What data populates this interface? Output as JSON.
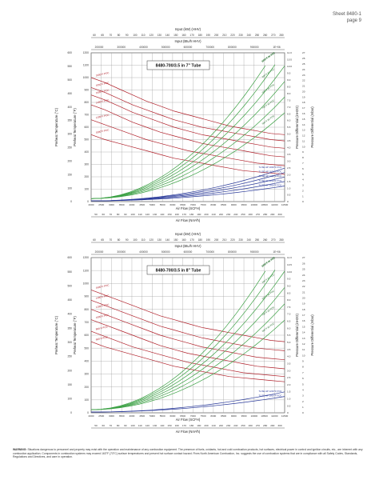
{
  "header": {
    "sheet": "Sheet 8480-1",
    "page": "page 9"
  },
  "chart_data": [
    {
      "type": "line",
      "title": "8480-700/3.5 in 7\" Tube",
      "top_axis_1_label": "Input (kW) (HHV)",
      "top_axis_1_ticks": [
        "60",
        "65",
        "70",
        "80",
        "90",
        "100",
        "110",
        "120",
        "130",
        "140",
        "150",
        "160",
        "170",
        "180",
        "190",
        "200",
        "210",
        "220",
        "230",
        "240",
        "250",
        "260",
        "270",
        "280"
      ],
      "top_axis_2_label": "Input (Btu/h HHV)",
      "top_axis_2_ticks": [
        "200000",
        "300000",
        "400000",
        "500000",
        "600000",
        "700000",
        "800000",
        "900000",
        "1E+06"
      ],
      "xlabel": "Air Flow (SCFH)",
      "x_ticks": [
        "2000",
        "2500",
        "3000",
        "3500",
        "4000",
        "4500",
        "5000",
        "5500",
        "6000",
        "6500",
        "7000",
        "7500",
        "8000",
        "8500",
        "9000",
        "9500",
        "10000",
        "10500",
        "11000",
        "11500"
      ],
      "bottom_axis_2_label": "Air Flow (Nm³/h)",
      "bottom_axis_2_ticks": [
        "50",
        "60",
        "70",
        "80",
        "90",
        "100",
        "110",
        "120",
        "130",
        "140",
        "150",
        "160",
        "170",
        "180",
        "190",
        "200",
        "210",
        "220",
        "230",
        "240",
        "250",
        "260",
        "270",
        "280",
        "290",
        "300"
      ],
      "ylabel_left_c": "Preheat Temperature (°C)",
      "y_ticks_c": [
        "0",
        "100",
        "150",
        "200",
        "250",
        "300",
        "350",
        "400",
        "450",
        "500",
        "550",
        "600"
      ],
      "ylabel_left_f": "Preheat Temperature (°F)",
      "y_ticks_f": [
        "0",
        "100",
        "200",
        "300",
        "400",
        "500",
        "600",
        "700",
        "800",
        "900",
        "1000",
        "1100",
        "1200"
      ],
      "ylabel_right_inwc": "Pressure Differential (inH2O)",
      "y_ticks_inwc": [
        "0",
        "0.5",
        "1.0",
        "1.5",
        "2.0",
        "2.5",
        "3.0",
        "3.5",
        "4.0",
        "4.5",
        "5.0",
        "5.5",
        "6.0",
        "6.5",
        "7.0",
        "7.5",
        "8.0",
        "8.5",
        "9.0",
        "9.5",
        "10.0",
        "10.5",
        "11.0"
      ],
      "ylabel_right_mbar": "Pressure Differential (mbar)",
      "y_ticks_mbar": [
        "0",
        "1",
        "2",
        "3",
        "4",
        "5",
        "6",
        "7",
        "8",
        "9",
        "10",
        "11",
        "12",
        "13",
        "14",
        "15",
        "16",
        "17",
        "18",
        "19",
        "20",
        "21",
        "22",
        "23",
        "24",
        "25",
        "26",
        "27"
      ],
      "red_series": [
        {
          "name": "1000°F POC",
          "values": [
            1000,
            960,
            910,
            860,
            810,
            770,
            730,
            700,
            670,
            640,
            610,
            590,
            570,
            550,
            540
          ]
        },
        {
          "name": "1050°F POC",
          "values": [
            920,
            880,
            830,
            780,
            740,
            700,
            660,
            630,
            600,
            580,
            560,
            540,
            520,
            500,
            490
          ]
        },
        {
          "name": "1600°F POC",
          "values": [
            860,
            820,
            770,
            720,
            680,
            640,
            600,
            570,
            540,
            520,
            500,
            480,
            460,
            440,
            430
          ]
        },
        {
          "name": "1400°F POC",
          "values": [
            780,
            740,
            690,
            640,
            600,
            560,
            530,
            500,
            470,
            450,
            430,
            410,
            390,
            370,
            360
          ]
        },
        {
          "name": "1200°F POC",
          "values": [
            660,
            620,
            580,
            540,
            500,
            470,
            440,
            410,
            390,
            370,
            350,
            330,
            310,
            300,
            290
          ]
        },
        {
          "name": "1000°F POC",
          "values": [
            540,
            500,
            470,
            440,
            410,
            380,
            350,
            330,
            310,
            290,
            270,
            250,
            240,
            230,
            220
          ]
        }
      ],
      "green_series_note": "Pressure differential curves (air)",
      "green_labels": [
        "600°F Air POC",
        "700°F Air POC",
        "800°F Air POC",
        "900°F Air POC",
        "1000°F Air POC",
        "1050°F Air POC"
      ],
      "blue_labels": [
        "TL/SE HP 1000°F POC",
        "TL/SE HP 1200°F POC",
        "TL/SE HP 1400°F POC",
        "TL/SE HP 1600°F POC",
        "TL/SE HP 1000°F POC"
      ]
    },
    {
      "type": "line",
      "title": "8480-700/3.5 in 8\" Tube",
      "top_axis_1_label": "Input (kW) (HHV)",
      "top_axis_1_ticks": [
        "60",
        "65",
        "70",
        "80",
        "90",
        "100",
        "110",
        "120",
        "130",
        "140",
        "150",
        "160",
        "170",
        "180",
        "190",
        "200",
        "210",
        "220",
        "230",
        "240",
        "250",
        "260",
        "270",
        "280"
      ],
      "top_axis_2_label": "Input (Btu/h HHV)",
      "top_axis_2_ticks": [
        "200000",
        "300000",
        "400000",
        "500000",
        "600000",
        "700000",
        "800000",
        "900000",
        "1E+06"
      ],
      "xlabel": "Air Flow (SCFH)",
      "x_ticks": [
        "2000",
        "2500",
        "3000",
        "3500",
        "4000",
        "4500",
        "5000",
        "5500",
        "6000",
        "6500",
        "7000",
        "7500",
        "8000",
        "8500",
        "9000",
        "9500",
        "10000",
        "10500",
        "11000",
        "11500"
      ],
      "bottom_axis_2_label": "Air Flow (Nm³/h)",
      "bottom_axis_2_ticks": [
        "50",
        "60",
        "70",
        "80",
        "90",
        "100",
        "110",
        "120",
        "130",
        "140",
        "150",
        "160",
        "170",
        "180",
        "190",
        "200",
        "210",
        "220",
        "230",
        "240",
        "250",
        "260",
        "270",
        "280",
        "290",
        "300"
      ],
      "ylabel_left_c": "Preheat Temperature (°C)",
      "y_ticks_c": [
        "0",
        "100",
        "150",
        "200",
        "250",
        "300",
        "350",
        "400",
        "450",
        "500",
        "550",
        "600"
      ],
      "ylabel_left_f": "Preheat Temperature (°F)",
      "y_ticks_f": [
        "0",
        "100",
        "200",
        "300",
        "400",
        "500",
        "600",
        "700",
        "800",
        "900",
        "1000",
        "1100",
        "1200"
      ],
      "ylabel_right_inwc": "Pressure Differential (inH2O)",
      "y_ticks_inwc": [
        "0",
        "0.5",
        "1.0",
        "1.5",
        "2.0",
        "2.5",
        "3.0",
        "3.5",
        "4.0",
        "4.5",
        "5.0",
        "5.5",
        "6.0",
        "6.5",
        "7.0",
        "7.5",
        "8.0",
        "8.5",
        "9.0",
        "9.5",
        "10.0",
        "10.5",
        "11.0"
      ],
      "ylabel_right_mbar": "Pressure Differential (mbar)",
      "y_ticks_mbar": [
        "0",
        "1",
        "2",
        "3",
        "4",
        "5",
        "6",
        "7",
        "8",
        "9",
        "10",
        "11",
        "12",
        "13",
        "14",
        "15",
        "16",
        "17",
        "18",
        "19",
        "20",
        "21",
        "22",
        "23",
        "24",
        "25",
        "26",
        "27"
      ],
      "red_series": [
        {
          "name": "1600°F POC",
          "values": [
            950,
            910,
            870,
            830,
            790,
            750,
            720,
            690,
            660,
            640,
            620,
            600,
            580,
            560,
            550
          ]
        },
        {
          "name": "1400°F POC",
          "values": [
            870,
            830,
            790,
            750,
            710,
            670,
            640,
            610,
            580,
            560,
            540,
            520,
            500,
            490,
            480
          ]
        },
        {
          "name": "1200°F POC",
          "values": [
            800,
            760,
            720,
            680,
            640,
            600,
            570,
            540,
            510,
            490,
            470,
            450,
            430,
            420,
            410
          ]
        },
        {
          "name": "1000°F POC",
          "values": [
            720,
            680,
            640,
            600,
            560,
            520,
            490,
            460,
            440,
            420,
            400,
            380,
            360,
            350,
            340
          ]
        },
        {
          "name": "800°F POC",
          "values": [
            630,
            590,
            550,
            510,
            480,
            450,
            420,
            390,
            370,
            350,
            330,
            310,
            300,
            290,
            280
          ]
        },
        {
          "name": "600°F POC",
          "values": [
            550,
            510,
            480,
            450,
            420,
            390,
            360,
            340,
            320,
            300,
            280,
            270,
            260,
            250,
            240
          ]
        }
      ],
      "green_series_note": "Pressure differential curves (air)",
      "green_labels": [
        "600°F Air POC",
        "700°F Air POC",
        "800°F Air POC",
        "900°F Air POC",
        "1000°F Air POC",
        "1050°F Air POC"
      ],
      "blue_labels": [
        "TL/SE HP 1000°F POC",
        "TL/SE HP 1200°F POC"
      ]
    }
  ],
  "warning": {
    "lead": "WARNING:",
    "text": "Situations dangerous to personnel and property may exist with the operation and maintenance of any combustion equipment. The presence of fuels, oxidants, hot and cold combustion products, hot surfaces, electrical power in control and ignition circuits, etc., are inherent with any combustion application. Components in combustion systems may exceed 163°F (73°C) surface temperatures and present hot surface contact hazard. Fives North American Combustion, Inc. suggests the use of combustion systems that are in compliance with all Safety Codes, Standards, Regulations and Directives, and care in operation."
  },
  "colors": {
    "red": "#b0202a",
    "green": "#3aa043",
    "blue": "#2a3a9a",
    "grid": "#9a9a9a"
  }
}
